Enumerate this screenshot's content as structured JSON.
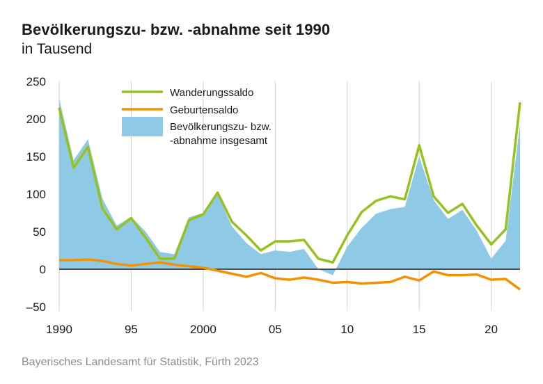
{
  "title": "Bevölkerungszu- bzw. -abnahme seit 1990",
  "subtitle": "in Tausend",
  "source": "Bayerisches Landesamt für Statistik, Fürth 2023",
  "colors": {
    "wanderung": "#96c11f",
    "geburten": "#f39200",
    "gesamt": "#8ecae6",
    "grid": "#d0d0d0",
    "axis": "#1a1a1a"
  },
  "chart_data": {
    "type": "area",
    "title": "Bevölkerungszu- bzw. -abnahme seit 1990",
    "subtitle": "in Tausend",
    "xlabel": "",
    "ylabel": "",
    "ylim": [
      -50,
      250
    ],
    "xlim": [
      1990,
      2022
    ],
    "grid": "vertical",
    "legend_position": "top-center",
    "y_ticks": [
      {
        "value": 250,
        "label": "250"
      },
      {
        "value": 200,
        "label": "200"
      },
      {
        "value": 150,
        "label": "150"
      },
      {
        "value": 100,
        "label": "100"
      },
      {
        "value": 50,
        "label": "50"
      },
      {
        "value": 0,
        "label": "0"
      },
      {
        "value": -50,
        "label": "–50"
      }
    ],
    "x_ticks": [
      {
        "value": 1990,
        "label": "1990"
      },
      {
        "value": 1995,
        "label": "95"
      },
      {
        "value": 2000,
        "label": "2000"
      },
      {
        "value": 2005,
        "label": "05"
      },
      {
        "value": 2010,
        "label": "10"
      },
      {
        "value": 2015,
        "label": "15"
      },
      {
        "value": 2020,
        "label": "20"
      }
    ],
    "x": [
      1990,
      1991,
      1992,
      1993,
      1994,
      1995,
      1996,
      1997,
      1998,
      1999,
      2000,
      2001,
      2002,
      2003,
      2004,
      2005,
      2006,
      2007,
      2008,
      2009,
      2010,
      2011,
      2012,
      2013,
      2014,
      2015,
      2016,
      2017,
      2018,
      2019,
      2020,
      2021,
      2022
    ],
    "series": [
      {
        "name": "Wanderungssaldo",
        "kind": "line",
        "color": "#96c11f",
        "values": [
          215,
          135,
          163,
          81,
          53,
          68,
          42,
          14,
          14,
          65,
          73,
          102,
          63,
          45,
          25,
          37,
          37,
          39,
          14,
          9,
          45,
          76,
          91,
          97,
          93,
          165,
          97,
          75,
          87,
          58,
          33,
          53,
          222
        ]
      },
      {
        "name": "Geburtensaldo",
        "kind": "line",
        "color": "#f39200",
        "values": [
          12,
          12,
          13,
          11,
          7,
          5,
          7,
          9,
          6,
          4,
          2,
          -2,
          -6,
          -10,
          -5,
          -12,
          -14,
          -11,
          -14,
          -18,
          -17,
          -19,
          -18,
          -17,
          -10,
          -15,
          -3,
          -8,
          -8,
          -7,
          -14,
          -13,
          -27
        ]
      },
      {
        "name": "Bevölkerungszu- bzw. -abnahme insgesamt",
        "kind": "area",
        "color": "#8ecae6",
        "values": [
          227,
          145,
          173,
          94,
          58,
          70,
          50,
          23,
          20,
          69,
          75,
          100,
          57,
          35,
          20,
          25,
          23,
          27,
          0,
          -8,
          30,
          55,
          74,
          80,
          83,
          150,
          92,
          67,
          79,
          51,
          14,
          38,
          193
        ]
      }
    ]
  }
}
